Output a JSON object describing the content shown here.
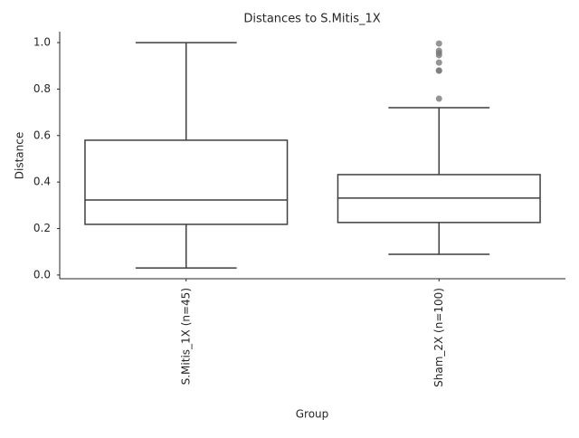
{
  "chart_data": {
    "type": "box",
    "title": "Distances to S.Mitis_1X",
    "x_label": "Group",
    "y_label": "Distance",
    "categories": [
      "S.Mitis_1X (n=45)",
      "Sham_2X (n=100)"
    ],
    "boxes": [
      {
        "whislo": 0.03,
        "q1": 0.218,
        "med": 0.323,
        "q3": 0.58,
        "whishi": 1.0,
        "fliers": []
      },
      {
        "whislo": 0.089,
        "q1": 0.226,
        "med": 0.331,
        "q3": 0.432,
        "whishi": 0.72,
        "fliers": [
          0.759,
          0.879,
          0.88,
          0.914,
          0.946,
          0.955,
          0.965,
          0.996
        ]
      }
    ],
    "box_color": "#ffffff",
    "line_color": "#3f3f3f",
    "flier_color": "#7a7a7a",
    "ylim": [
      -0.016,
      1.047
    ],
    "yticks": [
      {
        "value": 0,
        "label": "0.0"
      },
      0.2,
      0.4,
      0.6,
      0.8,
      {
        "value": 1,
        "label": "1.0"
      }
    ]
  }
}
